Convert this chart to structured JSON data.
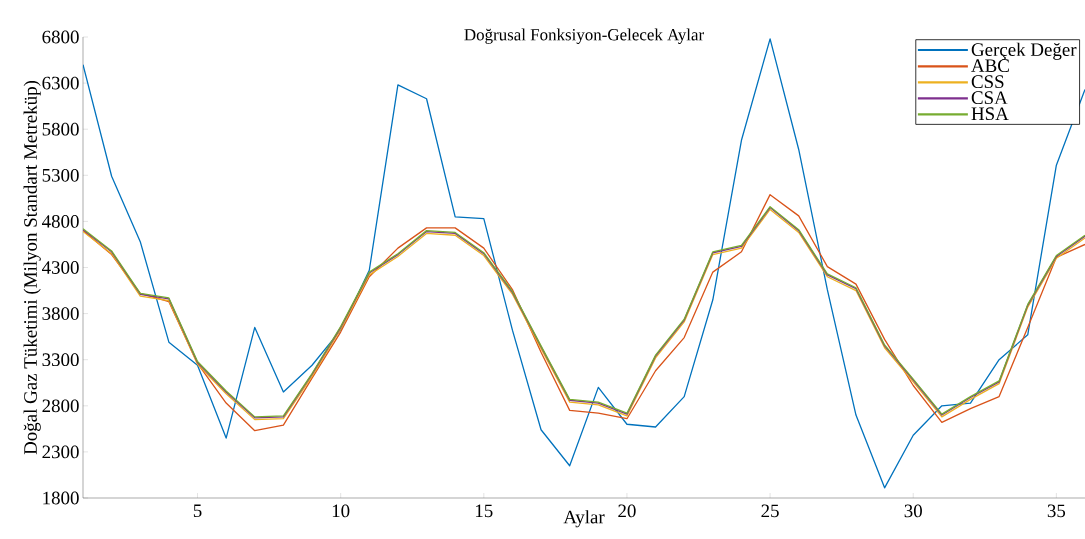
{
  "chart_data": {
    "type": "line",
    "title": "Doğrusal Fonksiyon-Gelecek Aylar",
    "xlabel": "Aylar",
    "ylabel": "Doğal Gaz Tüketimi (Milyon Standart Metreküp)",
    "x": [
      1,
      2,
      3,
      4,
      5,
      6,
      7,
      8,
      9,
      10,
      11,
      12,
      13,
      14,
      15,
      16,
      17,
      18,
      19,
      20,
      21,
      22,
      23,
      24,
      25,
      26,
      27,
      28,
      29,
      30,
      31,
      32,
      33,
      34,
      35,
      36
    ],
    "series": [
      {
        "name": "Gerçek Değer",
        "color": "#0072bd",
        "values": [
          6500,
          5290,
          4580,
          3490,
          3240,
          2450,
          3650,
          2950,
          3240,
          3620,
          4270,
          6280,
          6130,
          4850,
          4830,
          3620,
          2540,
          2150,
          3000,
          2600,
          2570,
          2900,
          3950,
          5680,
          6780,
          5580,
          4060,
          2700,
          1910,
          2480,
          2800,
          2830,
          3300,
          3570,
          5410,
          6230
        ]
      },
      {
        "name": "ABC",
        "color": "#d95319",
        "values": [
          4700,
          4440,
          4020,
          3930,
          3260,
          2830,
          2530,
          2590,
          3100,
          3600,
          4200,
          4510,
          4730,
          4730,
          4510,
          4060,
          3380,
          2750,
          2720,
          2660,
          3180,
          3540,
          4250,
          4470,
          5090,
          4860,
          4310,
          4120,
          3520,
          3020,
          2620,
          2770,
          2900,
          3650,
          4410,
          4550
        ]
      },
      {
        "name": "CSS",
        "color": "#edb120",
        "values": [
          4690,
          4450,
          3990,
          3940,
          3250,
          2930,
          2650,
          2660,
          3120,
          3630,
          4220,
          4420,
          4670,
          4650,
          4430,
          4010,
          3420,
          2840,
          2810,
          2690,
          3320,
          3710,
          4440,
          4510,
          4930,
          4680,
          4200,
          4050,
          3430,
          3060,
          2680,
          2870,
          3040,
          3870,
          4400,
          4620
        ]
      },
      {
        "name": "CSA",
        "color": "#7e2f8e",
        "values": [
          4710,
          4470,
          4010,
          3960,
          3270,
          2950,
          2670,
          2680,
          3140,
          3650,
          4240,
          4440,
          4690,
          4670,
          4450,
          4030,
          3440,
          2860,
          2830,
          2710,
          3340,
          3730,
          4460,
          4530,
          4950,
          4700,
          4220,
          4070,
          3450,
          3080,
          2700,
          2890,
          3060,
          3890,
          4420,
          4640
        ]
      },
      {
        "name": "HSA",
        "color": "#77ac30",
        "values": [
          4720,
          4480,
          4020,
          3970,
          3280,
          2960,
          2680,
          2690,
          3150,
          3660,
          4250,
          4450,
          4700,
          4680,
          4460,
          4040,
          3450,
          2870,
          2840,
          2720,
          3350,
          3740,
          4470,
          4540,
          4960,
          4710,
          4230,
          4080,
          3460,
          3090,
          2710,
          2900,
          3070,
          3900,
          4430,
          4650
        ]
      }
    ],
    "xlim": [
      1,
      36
    ],
    "xticks": [
      5,
      10,
      15,
      20,
      25,
      30,
      35
    ],
    "ylim": [
      1800,
      6800
    ],
    "yticks": [
      1800,
      2300,
      2800,
      3300,
      3800,
      4300,
      4800,
      5300,
      5800,
      6300,
      6800
    ],
    "legend": "top right",
    "line_style": "solid",
    "grid": false
  }
}
